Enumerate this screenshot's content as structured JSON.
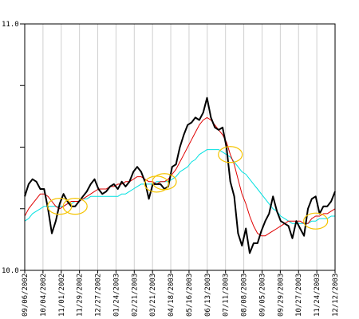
{
  "chart_data": {
    "type": "line",
    "ylim": [
      10.0,
      11.0
    ],
    "y_tick_labels": [
      "11.0",
      "10.0"
    ],
    "grid": "vertical",
    "x_tick_labels": [
      "09/06/2002",
      "10/04/2002",
      "11/01/2002",
      "11/29/2002",
      "12/27/2002",
      "01/24/2003",
      "02/21/2003",
      "03/21/2003",
      "04/18/2003",
      "05/16/2003",
      "06/13/2003",
      "07/11/2003",
      "08/08/2003",
      "09/05/2003",
      "09/29/2003",
      "10/27/2003",
      "11/24/2003",
      "12/12/2003"
    ],
    "colors": {
      "price": "#000000",
      "short_avg": "#e00000",
      "long_avg": "#00e0e0",
      "highlight": "#f5c400"
    },
    "series": [
      {
        "key": "price",
        "values": [
          10.3,
          10.35,
          10.37,
          10.36,
          10.33,
          10.33,
          10.25,
          10.15,
          10.2,
          10.27,
          10.31,
          10.28,
          10.26,
          10.26,
          10.28,
          10.3,
          10.32,
          10.35,
          10.37,
          10.33,
          10.31,
          10.32,
          10.34,
          10.35,
          10.33,
          10.36,
          10.34,
          10.36,
          10.4,
          10.42,
          10.4,
          10.36,
          10.29,
          10.35,
          10.35,
          10.35,
          10.33,
          10.34,
          10.42,
          10.43,
          10.5,
          10.55,
          10.59,
          10.6,
          10.62,
          10.61,
          10.64,
          10.7,
          10.62,
          10.58,
          10.57,
          10.58,
          10.5,
          10.36,
          10.3,
          10.15,
          10.1,
          10.17,
          10.07,
          10.11,
          10.11,
          10.16,
          10.2,
          10.23,
          10.3,
          10.24,
          10.2,
          10.19,
          10.18,
          10.13,
          10.2,
          10.17,
          10.14,
          10.25,
          10.29,
          10.3,
          10.23,
          10.26,
          10.26,
          10.28,
          10.32
        ]
      },
      {
        "key": "short_avg",
        "values": [
          10.22,
          10.25,
          10.27,
          10.29,
          10.31,
          10.31,
          10.3,
          10.28,
          10.26,
          10.25,
          10.26,
          10.27,
          10.28,
          10.28,
          10.28,
          10.29,
          10.3,
          10.31,
          10.32,
          10.33,
          10.33,
          10.33,
          10.34,
          10.34,
          10.35,
          10.35,
          10.36,
          10.36,
          10.37,
          10.38,
          10.38,
          10.37,
          10.36,
          10.36,
          10.35,
          10.36,
          10.36,
          10.37,
          10.39,
          10.41,
          10.44,
          10.47,
          10.5,
          10.53,
          10.56,
          10.59,
          10.61,
          10.62,
          10.61,
          10.59,
          10.57,
          10.55,
          10.52,
          10.47,
          10.43,
          10.37,
          10.31,
          10.27,
          10.22,
          10.18,
          10.15,
          10.14,
          10.14,
          10.15,
          10.16,
          10.17,
          10.18,
          10.19,
          10.2,
          10.2,
          10.2,
          10.2,
          10.19,
          10.19,
          10.21,
          10.22,
          10.22,
          10.23,
          10.23,
          10.24,
          10.25
        ]
      },
      {
        "key": "long_avg",
        "values": [
          10.2,
          10.21,
          10.23,
          10.24,
          10.25,
          10.26,
          10.26,
          10.26,
          10.26,
          10.26,
          10.26,
          10.27,
          10.27,
          10.28,
          10.28,
          10.29,
          10.29,
          10.3,
          10.3,
          10.3,
          10.3,
          10.3,
          10.3,
          10.3,
          10.3,
          10.31,
          10.31,
          10.32,
          10.33,
          10.34,
          10.35,
          10.35,
          10.35,
          10.35,
          10.36,
          10.36,
          10.36,
          10.36,
          10.37,
          10.38,
          10.4,
          10.41,
          10.42,
          10.44,
          10.45,
          10.47,
          10.48,
          10.49,
          10.49,
          10.49,
          10.49,
          10.48,
          10.47,
          10.46,
          10.44,
          10.42,
          10.4,
          10.39,
          10.37,
          10.35,
          10.33,
          10.31,
          10.29,
          10.27,
          10.25,
          10.24,
          10.22,
          10.21,
          10.2,
          10.19,
          10.19,
          10.19,
          10.19,
          10.19,
          10.2,
          10.2,
          10.21,
          10.21,
          10.21,
          10.22,
          10.22
        ]
      }
    ],
    "annotations": [
      {
        "kind": "ellipse",
        "x_index": 9,
        "y": 10.26
      },
      {
        "kind": "ellipse",
        "x_index": 13,
        "y": 10.26
      },
      {
        "kind": "ellipse",
        "x_index": 34,
        "y": 10.35
      },
      {
        "kind": "ellipse",
        "x_index": 36,
        "y": 10.36
      },
      {
        "kind": "ellipse",
        "x_index": 53,
        "y": 10.47
      },
      {
        "kind": "ellipse",
        "x_index": 75,
        "y": 10.2
      }
    ]
  }
}
